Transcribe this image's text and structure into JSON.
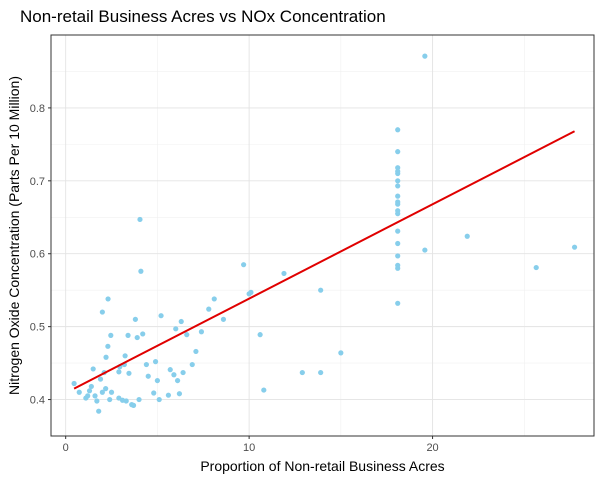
{
  "chart_data": {
    "type": "scatter",
    "title": "Non-retail Business Acres vs NOx Concentration",
    "xlabel": "Proportion of Non-retail Business Acres",
    "ylabel": "Nitrogen Oxide Concentration (Parts Per 10 Million)",
    "xlim": [
      -0.8,
      28.8
    ],
    "ylim": [
      0.35,
      0.9
    ],
    "x_ticks": [
      0,
      10,
      20
    ],
    "y_ticks": [
      0.4,
      0.5,
      0.6,
      0.7,
      0.8
    ],
    "x_tick_labels": [
      "0",
      "10",
      "20"
    ],
    "y_tick_labels": [
      "0.4",
      "0.5",
      "0.6",
      "0.7",
      "0.8"
    ],
    "grid": true,
    "point_color": "#87CEEB",
    "line_color": "#E00000",
    "trend_line": {
      "x": [
        0.46,
        27.74
      ],
      "y": [
        0.415,
        0.768
      ]
    },
    "points": [
      [
        0.46,
        0.422
      ],
      [
        0.74,
        0.41
      ],
      [
        1.1,
        0.402
      ],
      [
        1.2,
        0.405
      ],
      [
        1.3,
        0.412
      ],
      [
        1.4,
        0.418
      ],
      [
        1.5,
        0.442
      ],
      [
        1.6,
        0.405
      ],
      [
        1.7,
        0.398
      ],
      [
        1.8,
        0.384
      ],
      [
        1.9,
        0.428
      ],
      [
        2.0,
        0.41
      ],
      [
        2.0,
        0.52
      ],
      [
        2.1,
        0.437
      ],
      [
        2.18,
        0.415
      ],
      [
        2.2,
        0.458
      ],
      [
        2.3,
        0.473
      ],
      [
        2.31,
        0.538
      ],
      [
        2.4,
        0.4
      ],
      [
        2.46,
        0.488
      ],
      [
        2.5,
        0.41
      ],
      [
        2.9,
        0.438
      ],
      [
        2.9,
        0.402
      ],
      [
        2.95,
        0.445
      ],
      [
        3.1,
        0.399
      ],
      [
        3.2,
        0.448
      ],
      [
        3.24,
        0.46
      ],
      [
        3.3,
        0.398
      ],
      [
        3.4,
        0.488
      ],
      [
        3.45,
        0.436
      ],
      [
        3.6,
        0.393
      ],
      [
        3.7,
        0.392
      ],
      [
        3.8,
        0.51
      ],
      [
        3.9,
        0.485
      ],
      [
        4.0,
        0.4
      ],
      [
        4.05,
        0.647
      ],
      [
        4.1,
        0.576
      ],
      [
        4.2,
        0.49
      ],
      [
        4.4,
        0.448
      ],
      [
        4.5,
        0.432
      ],
      [
        4.8,
        0.409
      ],
      [
        4.9,
        0.452
      ],
      [
        5.0,
        0.426
      ],
      [
        5.1,
        0.4
      ],
      [
        5.2,
        0.515
      ],
      [
        5.6,
        0.406
      ],
      [
        5.7,
        0.441
      ],
      [
        5.9,
        0.434
      ],
      [
        6.0,
        0.497
      ],
      [
        6.1,
        0.426
      ],
      [
        6.2,
        0.408
      ],
      [
        6.3,
        0.507
      ],
      [
        6.4,
        0.437
      ],
      [
        6.6,
        0.489
      ],
      [
        6.9,
        0.448
      ],
      [
        7.1,
        0.466
      ],
      [
        7.4,
        0.493
      ],
      [
        7.8,
        0.524
      ],
      [
        8.1,
        0.538
      ],
      [
        8.6,
        0.51
      ],
      [
        9.7,
        0.585
      ],
      [
        10.0,
        0.545
      ],
      [
        10.1,
        0.547
      ],
      [
        10.6,
        0.489
      ],
      [
        10.8,
        0.413
      ],
      [
        11.9,
        0.573
      ],
      [
        12.9,
        0.437
      ],
      [
        13.9,
        0.437
      ],
      [
        13.9,
        0.55
      ],
      [
        15.0,
        0.464
      ],
      [
        18.1,
        0.532
      ],
      [
        18.1,
        0.58
      ],
      [
        18.1,
        0.584
      ],
      [
        18.1,
        0.597
      ],
      [
        18.1,
        0.614
      ],
      [
        18.1,
        0.631
      ],
      [
        18.1,
        0.655
      ],
      [
        18.1,
        0.659
      ],
      [
        18.1,
        0.668
      ],
      [
        18.1,
        0.671
      ],
      [
        18.1,
        0.679
      ],
      [
        18.1,
        0.693
      ],
      [
        18.1,
        0.7
      ],
      [
        18.1,
        0.71
      ],
      [
        18.1,
        0.713
      ],
      [
        18.1,
        0.718
      ],
      [
        18.1,
        0.74
      ],
      [
        18.1,
        0.77
      ],
      [
        19.58,
        0.605
      ],
      [
        19.58,
        0.871
      ],
      [
        21.89,
        0.624
      ],
      [
        25.65,
        0.581
      ],
      [
        27.74,
        0.609
      ]
    ]
  }
}
